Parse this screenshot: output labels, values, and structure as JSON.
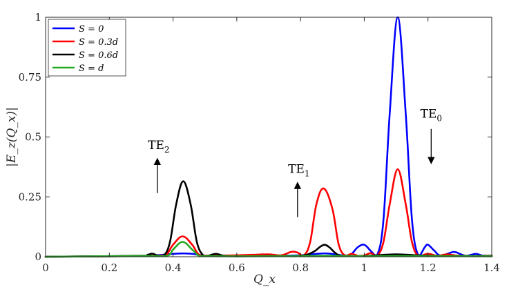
{
  "chart_data": {
    "type": "line",
    "xlabel": "Q_x",
    "ylabel": "|E_z(Q_x)|",
    "xlim": [
      0,
      1.4
    ],
    "ylim": [
      0,
      1
    ],
    "x_ticks": [
      "0",
      "0.2",
      "0.4",
      "0.6",
      "0.8",
      "1",
      "1.2",
      "1.4"
    ],
    "y_ticks": [
      "0",
      "0.25",
      "0.5",
      "0.75",
      "1"
    ],
    "grid": false,
    "legend_position": "top-left",
    "series": [
      {
        "name": "S = 0",
        "color": "#0000ff",
        "points": [
          [
            0,
            0
          ],
          [
            0.3,
            0.003
          ],
          [
            0.35,
            0.006
          ],
          [
            0.4,
            0.012
          ],
          [
            0.43,
            0.014
          ],
          [
            0.46,
            0.012
          ],
          [
            0.5,
            0.005
          ],
          [
            0.6,
            0.003
          ],
          [
            0.7,
            0.004
          ],
          [
            0.8,
            0.006
          ],
          [
            0.85,
            0.012
          ],
          [
            0.88,
            0.014
          ],
          [
            0.91,
            0.01
          ],
          [
            0.94,
            0.005
          ],
          [
            0.96,
            0.012
          ],
          [
            0.98,
            0.04
          ],
          [
            1.0,
            0.05
          ],
          [
            1.02,
            0.025
          ],
          [
            1.04,
            0.005
          ],
          [
            1.06,
            0.15
          ],
          [
            1.08,
            0.6
          ],
          [
            1.105,
            1.0
          ],
          [
            1.13,
            0.6
          ],
          [
            1.15,
            0.15
          ],
          [
            1.17,
            0.005
          ],
          [
            1.19,
            0.04
          ],
          [
            1.2,
            0.05
          ],
          [
            1.22,
            0.025
          ],
          [
            1.24,
            0.005
          ],
          [
            1.28,
            0.02
          ],
          [
            1.3,
            0.012
          ],
          [
            1.32,
            0.004
          ],
          [
            1.35,
            0.012
          ],
          [
            1.37,
            0.005
          ],
          [
            1.4,
            0.004
          ]
        ]
      },
      {
        "name": "S = 0.3d",
        "color": "#ff0000",
        "points": [
          [
            0,
            0
          ],
          [
            0.3,
            0.003
          ],
          [
            0.33,
            0.005
          ],
          [
            0.36,
            0.005
          ],
          [
            0.38,
            0.01
          ],
          [
            0.4,
            0.05
          ],
          [
            0.43,
            0.085
          ],
          [
            0.46,
            0.05
          ],
          [
            0.48,
            0.01
          ],
          [
            0.5,
            0.005
          ],
          [
            0.55,
            0.005
          ],
          [
            0.6,
            0.006
          ],
          [
            0.65,
            0.008
          ],
          [
            0.7,
            0.01
          ],
          [
            0.74,
            0.006
          ],
          [
            0.77,
            0.02
          ],
          [
            0.79,
            0.018
          ],
          [
            0.81,
            0.005
          ],
          [
            0.83,
            0.06
          ],
          [
            0.85,
            0.22
          ],
          [
            0.873,
            0.285
          ],
          [
            0.9,
            0.2
          ],
          [
            0.92,
            0.05
          ],
          [
            0.94,
            0.005
          ],
          [
            0.96,
            0.012
          ],
          [
            0.98,
            0.004
          ],
          [
            1.0,
            0.005
          ],
          [
            1.02,
            0.015
          ],
          [
            1.04,
            0.004
          ],
          [
            1.06,
            0.06
          ],
          [
            1.08,
            0.22
          ],
          [
            1.105,
            0.365
          ],
          [
            1.13,
            0.22
          ],
          [
            1.15,
            0.06
          ],
          [
            1.17,
            0.004
          ],
          [
            1.2,
            0.012
          ],
          [
            1.23,
            0.004
          ],
          [
            1.26,
            0.01
          ],
          [
            1.3,
            0.004
          ],
          [
            1.4,
            0.004
          ]
        ]
      },
      {
        "name": "S = 0.6d",
        "color": "#000000",
        "points": [
          [
            0,
            0
          ],
          [
            0.3,
            0.004
          ],
          [
            0.32,
            0.008
          ],
          [
            0.335,
            0.013
          ],
          [
            0.35,
            0.006
          ],
          [
            0.37,
            0.003
          ],
          [
            0.39,
            0.06
          ],
          [
            0.41,
            0.22
          ],
          [
            0.432,
            0.315
          ],
          [
            0.455,
            0.22
          ],
          [
            0.475,
            0.06
          ],
          [
            0.495,
            0.005
          ],
          [
            0.51,
            0.004
          ],
          [
            0.535,
            0.012
          ],
          [
            0.56,
            0.004
          ],
          [
            0.6,
            0.002
          ],
          [
            0.7,
            0.003
          ],
          [
            0.8,
            0.004
          ],
          [
            0.84,
            0.02
          ],
          [
            0.86,
            0.04
          ],
          [
            0.875,
            0.05
          ],
          [
            0.89,
            0.04
          ],
          [
            0.91,
            0.015
          ],
          [
            0.93,
            0.004
          ],
          [
            1.0,
            0.003
          ],
          [
            1.1,
            0.01
          ],
          [
            1.2,
            0.004
          ],
          [
            1.4,
            0.003
          ]
        ]
      },
      {
        "name": "S = d",
        "color": "#22aa22",
        "points": [
          [
            0,
            0
          ],
          [
            0.3,
            0.003
          ],
          [
            0.38,
            0.004
          ],
          [
            0.4,
            0.03
          ],
          [
            0.43,
            0.062
          ],
          [
            0.46,
            0.03
          ],
          [
            0.48,
            0.005
          ],
          [
            0.5,
            0.003
          ],
          [
            0.6,
            0.002
          ],
          [
            0.8,
            0.003
          ],
          [
            0.88,
            0.004
          ],
          [
            1.0,
            0.002
          ],
          [
            1.1,
            0.003
          ],
          [
            1.4,
            0.002
          ]
        ]
      }
    ],
    "annotations": [
      {
        "label": "TE",
        "sub": "2",
        "x": 0.355,
        "y": 0.45,
        "arrow": "up"
      },
      {
        "label": "TE",
        "sub": "1",
        "x": 0.795,
        "y": 0.35,
        "arrow": "up"
      },
      {
        "label": "TE",
        "sub": "0",
        "x": 1.21,
        "y": 0.58,
        "arrow": "down"
      }
    ]
  }
}
